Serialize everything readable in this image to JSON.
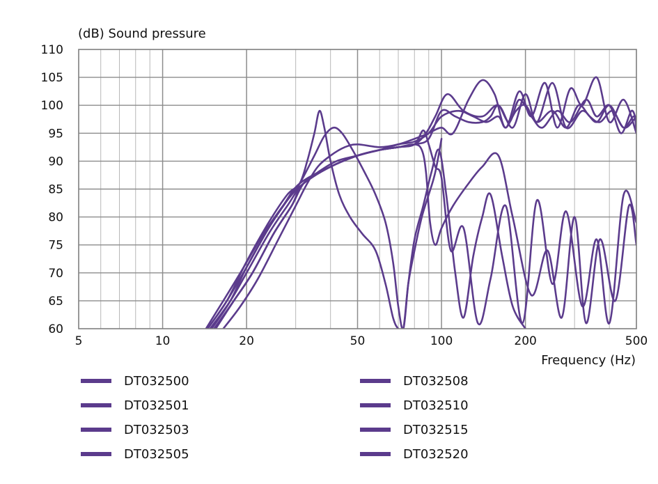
{
  "chart_data": {
    "type": "line",
    "title": "",
    "ylabel": "(dB)  Sound pressure",
    "xlabel": "Frequency  (Hz)",
    "x_scale": "log",
    "xlim": [
      5,
      500
    ],
    "ylim": [
      60,
      110
    ],
    "x_ticks": [
      5,
      10,
      20,
      50,
      100,
      200,
      500
    ],
    "y_ticks": [
      60,
      65,
      70,
      75,
      80,
      85,
      90,
      95,
      100,
      105,
      110
    ],
    "grid": true,
    "legend_placement": "bottom",
    "line_color": "#5b3b8c",
    "series": [
      {
        "name": "DT032500",
        "x": [
          14.5,
          17,
          20,
          24,
          28,
          32,
          40,
          50,
          60,
          70,
          80,
          90,
          100,
          112,
          125,
          140,
          150,
          160,
          175,
          190,
          210,
          230,
          260,
          290,
          330,
          360,
          400,
          440,
          480,
          500
        ],
        "y": [
          60,
          65,
          71,
          78,
          83,
          86,
          89,
          91,
          92,
          92.5,
          93,
          94,
          99,
          98,
          97,
          97,
          98,
          100,
          97,
          101,
          98,
          96,
          99,
          97,
          101,
          98,
          100,
          95,
          99,
          97
        ]
      },
      {
        "name": "DT032501",
        "x": [
          14.8,
          17.5,
          20,
          24,
          28,
          32,
          40,
          50,
          60,
          70,
          80,
          90,
          100,
          115,
          130,
          145,
          160,
          170,
          185,
          200,
          220,
          250,
          280,
          310,
          340,
          370,
          410,
          450,
          490,
          500
        ],
        "y": [
          60,
          65,
          70,
          77,
          82,
          86,
          89,
          91,
          92,
          93,
          93.5,
          95,
          98,
          99,
          98,
          97,
          98,
          96,
          99,
          100,
          97,
          99,
          96,
          100,
          98,
          97,
          99,
          96,
          98,
          95
        ]
      },
      {
        "name": "DT032503",
        "x": [
          15.5,
          18,
          21,
          25,
          29,
          32,
          36,
          42,
          50,
          60,
          70,
          80,
          88,
          95,
          105,
          120,
          140,
          160,
          180,
          200,
          220,
          250,
          280,
          320,
          360,
          400,
          450,
          500
        ],
        "y": [
          60,
          65,
          70,
          77,
          82,
          86,
          88,
          90,
          91,
          92,
          92.5,
          93,
          95,
          98,
          102,
          99,
          98,
          100,
          96,
          102,
          97,
          104,
          96,
          99,
          97,
          100,
          96,
          98
        ]
      },
      {
        "name": "DT032505",
        "x": [
          16.5,
          19,
          22,
          26,
          30,
          33,
          36,
          40,
          45,
          50,
          60,
          70,
          80,
          90,
          100,
          110,
          125,
          140,
          155,
          170,
          190,
          210,
          235,
          260,
          290,
          320,
          360,
          400,
          450,
          500
        ],
        "y": [
          60,
          64,
          69,
          76,
          82,
          86,
          89,
          91,
          92.5,
          93,
          92.5,
          93,
          94,
          95,
          96,
          95,
          101,
          104.5,
          102,
          96,
          102.5,
          98,
          104,
          96,
          103,
          100,
          105,
          97,
          101,
          95
        ]
      },
      {
        "name": "DT032508",
        "x": [
          14.5,
          17,
          20,
          24,
          28,
          31,
          33,
          35,
          36.5,
          38,
          40,
          43,
          47,
          52,
          58,
          63,
          67,
          70,
          73,
          76,
          80,
          85,
          90,
          95,
          100
        ],
        "y": [
          60,
          65,
          72,
          79,
          84,
          86,
          90,
          95,
          99,
          96,
          90,
          84,
          80,
          77,
          74,
          68,
          62,
          60,
          60,
          68,
          74,
          80,
          84,
          88,
          94
        ]
      },
      {
        "name": "DT032510",
        "x": [
          15,
          17.5,
          20,
          24,
          28,
          31,
          35,
          38,
          41,
          44,
          48,
          53,
          58,
          63,
          67,
          70,
          73,
          76,
          80,
          86,
          92,
          98,
          104,
          112,
          120,
          130,
          140,
          150,
          165,
          180,
          200
        ],
        "y": [
          60,
          65,
          71,
          78,
          83,
          86,
          91,
          94.5,
          96,
          95,
          92,
          88,
          84,
          79,
          72,
          64,
          60,
          68,
          76,
          82,
          88,
          92,
          84,
          70,
          62,
          73,
          80,
          84,
          73,
          64,
          60
        ]
      },
      {
        "name": "DT032515",
        "x": [
          15.3,
          18,
          21,
          25,
          29,
          32,
          40,
          50,
          60,
          70,
          80,
          85,
          88,
          91,
          95,
          100,
          110,
          125,
          140,
          160,
          180,
          210,
          240,
          270,
          300,
          330,
          370,
          420,
          470,
          500
        ],
        "y": [
          60,
          65,
          70,
          77,
          82,
          86,
          89,
          91,
          92,
          92.5,
          93,
          92,
          88,
          79,
          75,
          78,
          82,
          86,
          89,
          91,
          80,
          66,
          74,
          62,
          80,
          61,
          76,
          65,
          82,
          75
        ]
      },
      {
        "name": "DT032520",
        "x": [
          14.3,
          16.5,
          19,
          23,
          27,
          31,
          40,
          50,
          60,
          70,
          80,
          86,
          90,
          95,
          100,
          108,
          120,
          135,
          150,
          170,
          195,
          220,
          250,
          280,
          320,
          360,
          400,
          450,
          500
        ],
        "y": [
          60,
          65,
          70,
          77,
          82,
          86,
          89,
          91,
          92,
          92.5,
          93,
          95.5,
          93,
          89,
          87,
          74,
          78,
          61,
          69,
          82,
          61,
          83,
          68,
          81,
          64,
          76,
          61,
          84,
          79
        ]
      }
    ]
  }
}
